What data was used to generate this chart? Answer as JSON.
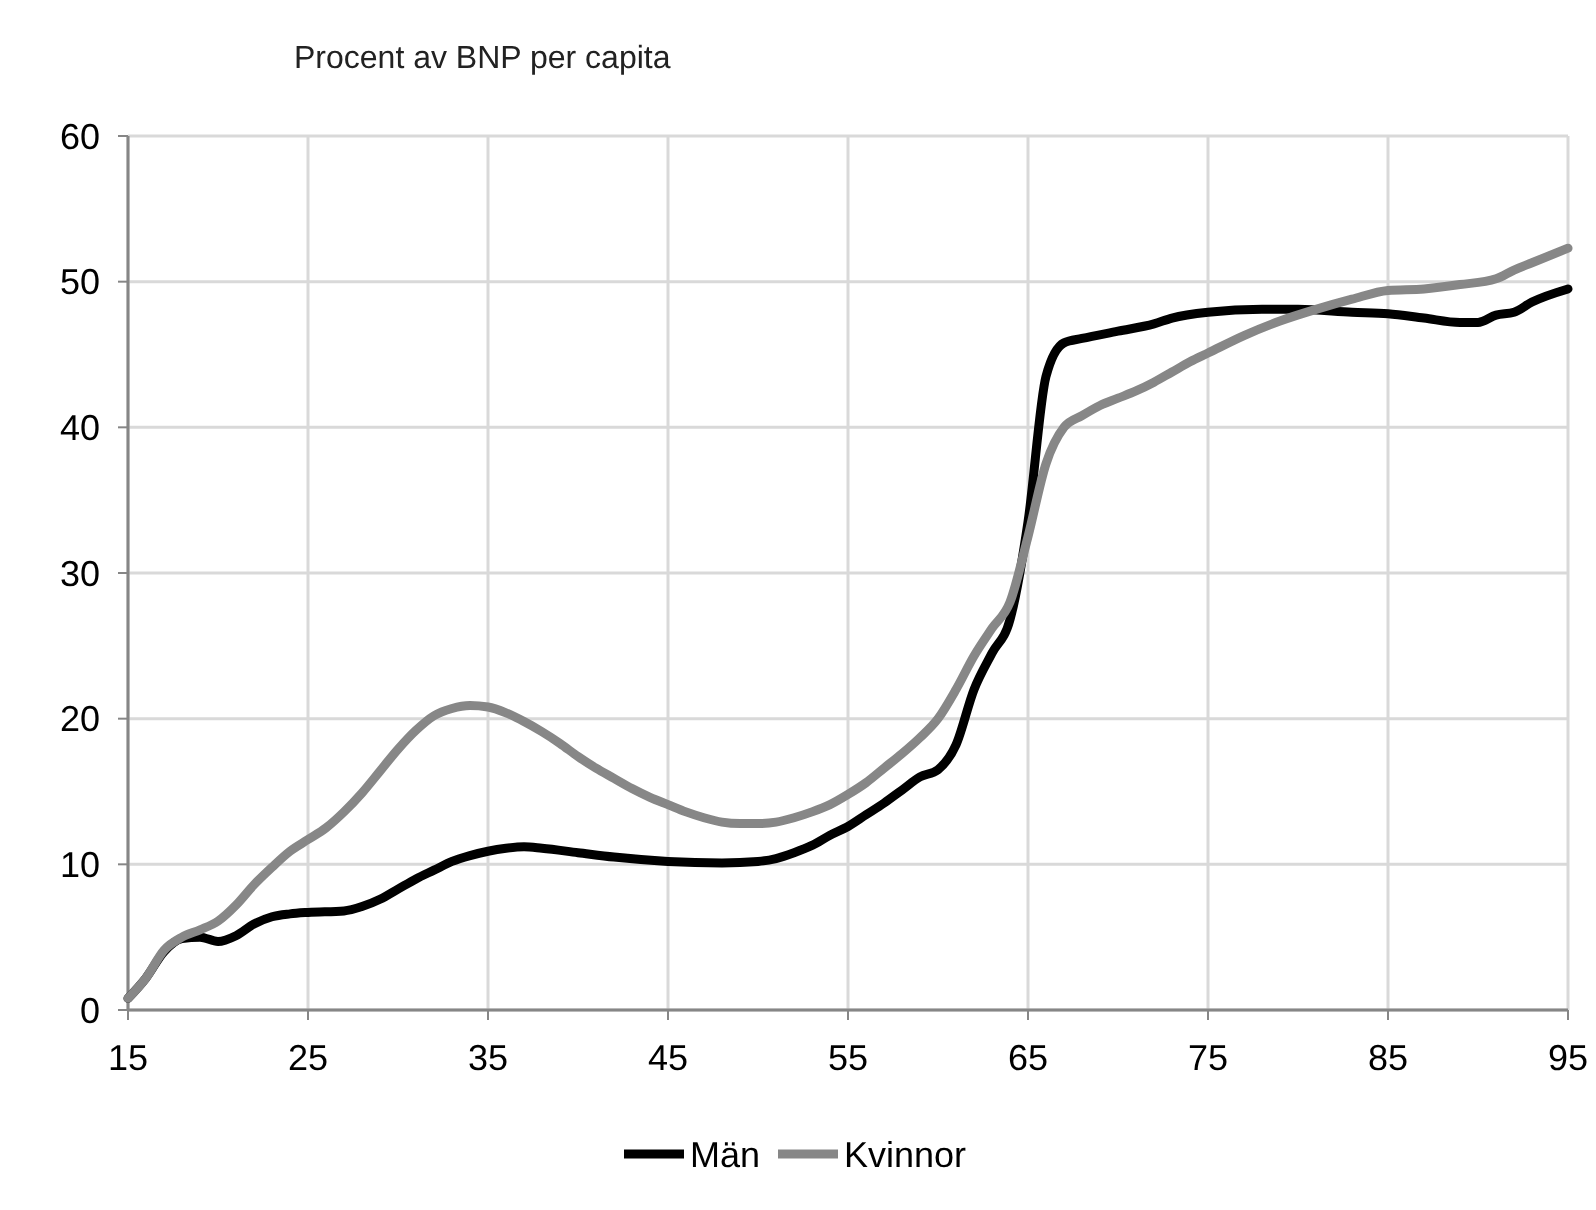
{
  "chart_data": {
    "type": "line",
    "ylabel": "Procent av BNP per capita",
    "xlim": [
      15,
      95
    ],
    "xticks": [
      15,
      25,
      35,
      45,
      55,
      65,
      75,
      85,
      95
    ],
    "ylim": [
      0,
      60
    ],
    "yticks": [
      0,
      10,
      20,
      30,
      40,
      50,
      60
    ],
    "grid": true,
    "legend": "bottom",
    "line_style": "solid",
    "marker": "none",
    "series": [
      {
        "name": "Män",
        "color": "#000000",
        "x": [
          15,
          16,
          17,
          18,
          19,
          20,
          21,
          22,
          23,
          24,
          25,
          27,
          28,
          29,
          30,
          31,
          32,
          33,
          34,
          35,
          36,
          37,
          38,
          40,
          42,
          45,
          48,
          50,
          51,
          52,
          53,
          54,
          55,
          56,
          57,
          58,
          59,
          60,
          61,
          62,
          63,
          64,
          65,
          66,
          67,
          68,
          70,
          72,
          73,
          75,
          78,
          80,
          83,
          85,
          87,
          89,
          90,
          91,
          92,
          93,
          95
        ],
        "values": [
          0.8,
          2.2,
          4,
          4.9,
          5,
          4.7,
          5.1,
          5.9,
          6.4,
          6.6,
          6.7,
          6.8,
          7.1,
          7.6,
          8.3,
          9,
          9.6,
          10.2,
          10.6,
          10.9,
          11.1,
          11.2,
          11.1,
          10.8,
          10.5,
          10.2,
          10.1,
          10.2,
          10.4,
          10.8,
          11.3,
          12,
          12.6,
          13.4,
          14.2,
          15.1,
          16,
          16.5,
          18.2,
          22,
          24.5,
          26.8,
          33.5,
          43.5,
          45.8,
          46.1,
          46.6,
          47.1,
          47.5,
          47.9,
          48.1,
          48.1,
          47.9,
          47.8,
          47.5,
          47.2,
          47.2,
          47.7,
          47.9,
          48.6,
          49.5
        ]
      },
      {
        "name": "Kvinnor",
        "color": "#878787",
        "x": [
          15,
          16,
          17,
          18,
          19,
          20,
          21,
          22,
          23,
          24,
          25,
          26,
          27,
          28,
          29,
          30,
          31,
          32,
          33,
          34,
          35,
          36,
          37,
          38,
          39,
          40,
          41,
          42,
          43,
          44,
          45,
          46,
          47,
          48,
          49,
          50,
          51,
          52,
          53,
          54,
          55,
          56,
          57,
          58,
          59,
          60,
          61,
          62,
          63,
          64,
          65,
          66,
          67,
          68,
          69,
          70,
          71,
          72,
          73,
          74,
          75,
          77,
          79,
          81,
          83,
          85,
          87,
          89,
          91,
          92,
          93,
          95
        ],
        "values": [
          0.8,
          2.2,
          4.1,
          5,
          5.5,
          6.1,
          7.2,
          8.6,
          9.8,
          10.9,
          11.7,
          12.5,
          13.6,
          14.9,
          16.4,
          17.9,
          19.2,
          20.2,
          20.7,
          20.9,
          20.8,
          20.4,
          19.8,
          19.1,
          18.3,
          17.4,
          16.6,
          15.9,
          15.2,
          14.6,
          14.1,
          13.6,
          13.2,
          12.9,
          12.8,
          12.8,
          12.9,
          13.2,
          13.6,
          14.1,
          14.8,
          15.6,
          16.6,
          17.6,
          18.7,
          20,
          22,
          24.3,
          26.2,
          28,
          32.5,
          37.5,
          40,
          40.8,
          41.5,
          42,
          42.5,
          43.1,
          43.8,
          44.5,
          45.1,
          46.3,
          47.3,
          48.1,
          48.8,
          49.4,
          49.5,
          49.8,
          50.2,
          50.8,
          51.3,
          52.3
        ]
      }
    ]
  }
}
